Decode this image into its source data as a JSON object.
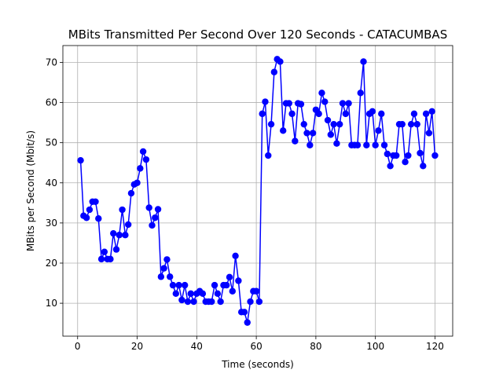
{
  "chart_data": {
    "type": "line",
    "title": "MBits Transmitted Per Second Over 120 Seconds - CATACUMBAS",
    "xlabel": "Time (seconds)",
    "ylabel": "MBits per Second (Mbit/s)",
    "xlim": [
      -4.95,
      125.95
    ],
    "ylim": [
      1.8,
      74.2
    ],
    "xticks": [
      0,
      20,
      40,
      60,
      80,
      100,
      120
    ],
    "yticks": [
      10,
      20,
      30,
      40,
      50,
      60,
      70
    ],
    "grid": true,
    "legend": "none",
    "series": [
      {
        "color": "#0000ff",
        "marker": "circle",
        "x": [
          1,
          2,
          3,
          4,
          5,
          6,
          7,
          8,
          9,
          10,
          11,
          12,
          13,
          14,
          15,
          16,
          17,
          18,
          19,
          20,
          21,
          22,
          23,
          24,
          25,
          26,
          27,
          28,
          29,
          30,
          31,
          32,
          33,
          34,
          35,
          36,
          37,
          38,
          39,
          40,
          41,
          42,
          43,
          44,
          45,
          46,
          47,
          48,
          49,
          50,
          51,
          52,
          53,
          54,
          55,
          56,
          57,
          58,
          59,
          60,
          61,
          62,
          63,
          64,
          65,
          66,
          67,
          68,
          69,
          70,
          71,
          72,
          73,
          74,
          75,
          76,
          77,
          78,
          79,
          80,
          81,
          82,
          83,
          84,
          85,
          86,
          87,
          88,
          89,
          90,
          91,
          92,
          93,
          94,
          95,
          96,
          97,
          98,
          99,
          100,
          101,
          102,
          103,
          104,
          105,
          106,
          107,
          108,
          109,
          110,
          111,
          112,
          113,
          114,
          115,
          116,
          117,
          118,
          119,
          120
        ],
        "values": [
          45.6,
          31.8,
          31.3,
          33.3,
          35.3,
          35.3,
          31.1,
          21.0,
          22.8,
          21.0,
          21.0,
          27.4,
          23.4,
          27.0,
          33.3,
          27.0,
          29.6,
          37.4,
          39.6,
          40.0,
          43.6,
          47.8,
          45.8,
          33.8,
          29.4,
          31.3,
          33.4,
          16.6,
          18.7,
          20.9,
          16.6,
          14.5,
          12.4,
          14.5,
          10.8,
          14.5,
          10.4,
          12.4,
          10.4,
          12.4,
          13.0,
          12.4,
          10.4,
          10.4,
          10.4,
          14.5,
          12.4,
          10.4,
          14.5,
          14.5,
          16.5,
          13.0,
          21.8,
          15.6,
          7.8,
          7.8,
          5.2,
          10.4,
          13.0,
          13.0,
          10.4,
          57.2,
          60.2,
          46.8,
          54.6,
          67.6,
          70.8,
          70.2,
          53.0,
          59.8,
          59.8,
          57.2,
          50.4,
          59.8,
          59.6,
          54.6,
          52.4,
          49.4,
          52.4,
          58.2,
          57.2,
          62.4,
          60.2,
          55.6,
          52.0,
          54.6,
          49.8,
          54.6,
          59.8,
          57.2,
          59.8,
          49.4,
          49.4,
          49.4,
          62.4,
          70.2,
          49.4,
          57.2,
          57.8,
          49.4,
          53.0,
          57.2,
          49.4,
          47.2,
          44.2,
          46.8,
          46.8,
          54.6,
          54.6,
          45.2,
          46.8,
          54.6,
          57.2,
          54.6,
          47.4,
          44.2,
          57.2,
          52.4,
          57.8,
          46.8
        ]
      }
    ]
  }
}
